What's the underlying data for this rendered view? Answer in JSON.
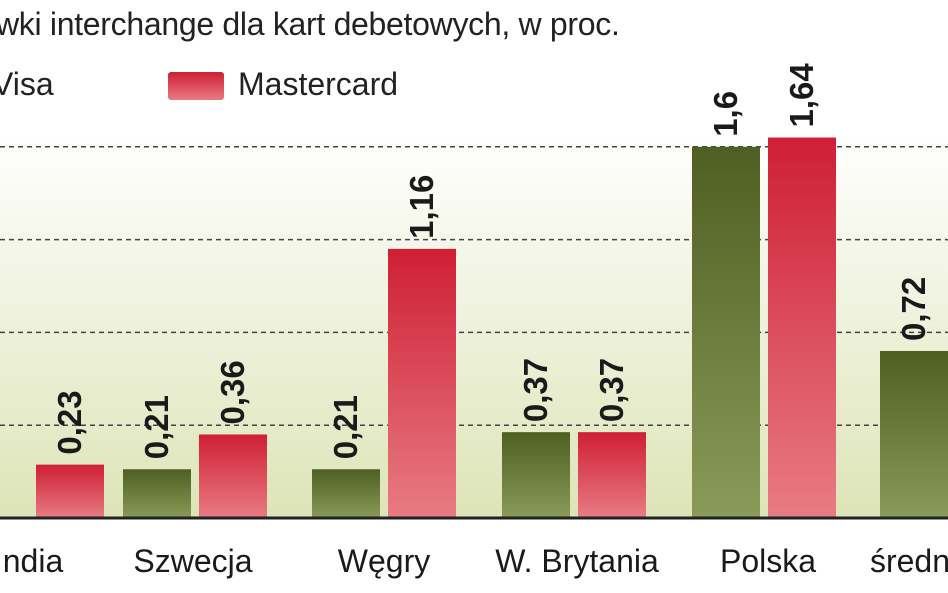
{
  "subtitle": "wki interchange dla kart debetowych, w proc.",
  "legend": [
    {
      "label": "Visa",
      "color": "#5b6b2c"
    },
    {
      "label": "Mastercard",
      "color": "#d42a3a"
    }
  ],
  "chart_data": {
    "type": "bar",
    "categories": [
      "ndia",
      "Szwecja",
      "Węgry",
      "W. Brytania",
      "Polska",
      "średn"
    ],
    "series": [
      {
        "name": "Visa",
        "values": [
          null,
          0.21,
          0.21,
          0.37,
          1.6,
          0.72
        ],
        "labels": [
          "",
          "0,21",
          "0,21",
          "0,37",
          "1,6",
          "0,72"
        ]
      },
      {
        "name": "Mastercard",
        "values": [
          0.23,
          0.36,
          1.16,
          0.37,
          1.64,
          null
        ],
        "labels": [
          "0,23",
          "0,36",
          "1,16",
          "0,37",
          "1,64",
          ""
        ]
      }
    ],
    "ylim": [
      0,
      2
    ],
    "grid": true
  }
}
